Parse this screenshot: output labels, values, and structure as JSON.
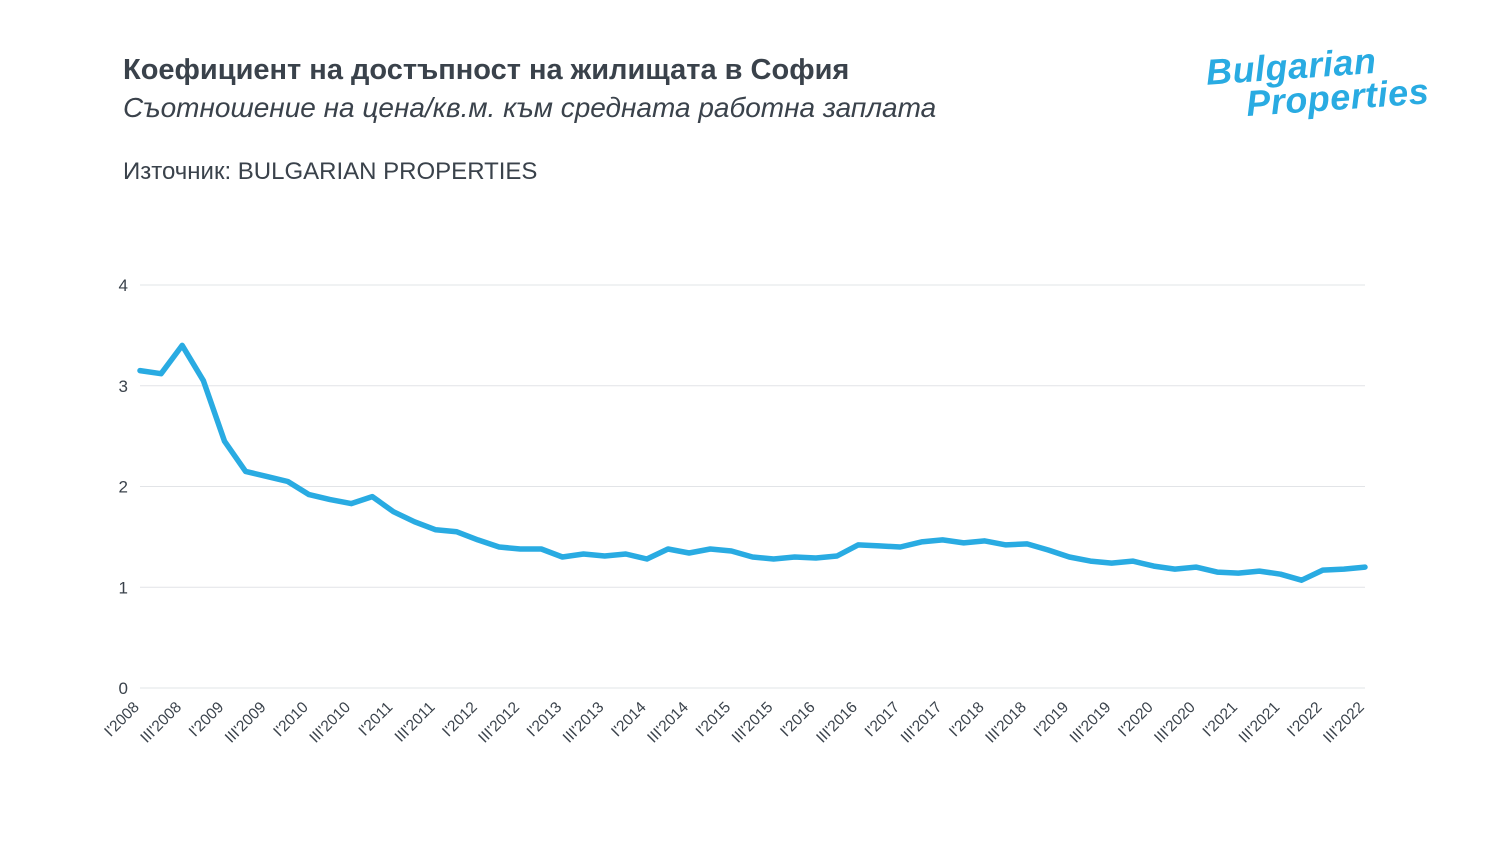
{
  "header": {
    "title": "Коефициент на достъпност на жилищата в София",
    "subtitle": "Съотношение на цена/кв.м. към средната работна заплата",
    "source": "Източник: BULGARIAN PROPERTIES"
  },
  "logo": {
    "line1": "Bulgarian",
    "line2": "Properties",
    "color": "#29abe2"
  },
  "chart_data": {
    "type": "line",
    "title": "Коефициент на достъпност на жилищата в София",
    "subtitle": "Съотношение на цена/кв.м. към средната работна заплата",
    "source": "Източник: BULGARIAN PROPERTIES",
    "x": [
      "I'2008",
      "II'2008",
      "III'2008",
      "IV'2008",
      "I'2009",
      "II'2009",
      "III'2009",
      "IV'2009",
      "I'2010",
      "II'2010",
      "III'2010",
      "IV'2010",
      "I'2011",
      "II'2011",
      "III'2011",
      "IV'2011",
      "I'2012",
      "II'2012",
      "III'2012",
      "IV'2012",
      "I'2013",
      "II'2013",
      "III'2013",
      "IV'2013",
      "I'2014",
      "II'2014",
      "III'2014",
      "IV'2014",
      "I'2015",
      "II'2015",
      "III'2015",
      "IV'2015",
      "I'2016",
      "II'2016",
      "III'2016",
      "IV'2016",
      "I'2017",
      "II'2017",
      "III'2017",
      "IV'2017",
      "I'2018",
      "II'2018",
      "III'2018",
      "IV'2018",
      "I'2019",
      "II'2019",
      "III'2019",
      "IV'2019",
      "I'2020",
      "II'2020",
      "III'2020",
      "IV'2020",
      "I'2021",
      "II'2021",
      "III'2021",
      "IV'2021",
      "I'2022",
      "II'2022",
      "III'2022"
    ],
    "values": [
      3.15,
      3.12,
      3.4,
      3.05,
      2.45,
      2.15,
      2.1,
      2.05,
      1.92,
      1.87,
      1.83,
      1.9,
      1.75,
      1.65,
      1.57,
      1.55,
      1.47,
      1.4,
      1.38,
      1.38,
      1.3,
      1.33,
      1.31,
      1.33,
      1.28,
      1.38,
      1.34,
      1.38,
      1.36,
      1.3,
      1.28,
      1.3,
      1.29,
      1.31,
      1.42,
      1.41,
      1.4,
      1.45,
      1.47,
      1.44,
      1.46,
      1.42,
      1.43,
      1.37,
      1.3,
      1.26,
      1.24,
      1.26,
      1.21,
      1.18,
      1.2,
      1.15,
      1.14,
      1.16,
      1.13,
      1.07,
      1.17,
      1.18,
      1.2
    ],
    "xtick_labels": [
      "I'2008",
      "III'2008",
      "I'2009",
      "III'2009",
      "I'2010",
      "III'2010",
      "I'2011",
      "III'2011",
      "I'2012",
      "III'2012",
      "I'2013",
      "III'2013",
      "I'2014",
      "III'2014",
      "I'2015",
      "III'2015",
      "I'2016",
      "III'2016",
      "I'2017",
      "III'2017",
      "I'2018",
      "III'2018",
      "I'2019",
      "III'2019",
      "I'2020",
      "III'2020",
      "I'2021",
      "III'2021",
      "I'2022",
      "III'2022"
    ],
    "yticks": [
      0,
      1,
      2,
      3,
      4
    ],
    "ylim": [
      0,
      4
    ],
    "xlabel": "",
    "ylabel": "",
    "grid": true,
    "legend": "none",
    "line_color": "#29abe2"
  }
}
